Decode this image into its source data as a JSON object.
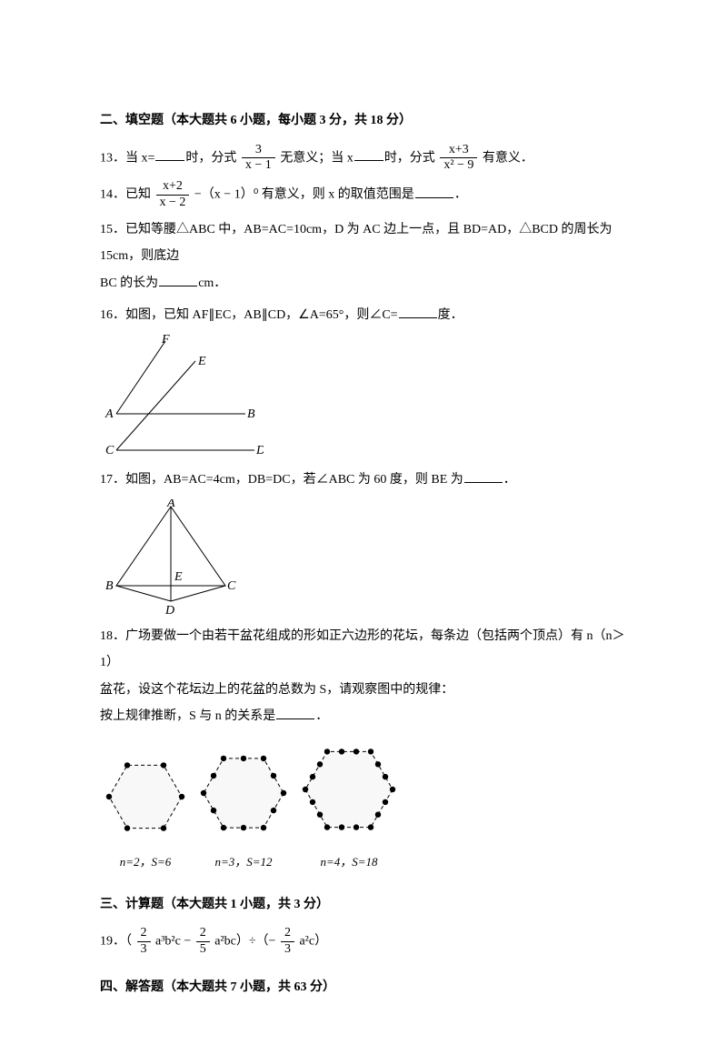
{
  "sections": {
    "fill_title": "二、填空题（本大题共 6 小题，每小题 3 分，共 18 分）",
    "calc_title": "三、计算题（本大题共 1 小题，共 3 分）",
    "solve_title": "四、解答题（本大题共 7 小题，共 63 分）"
  },
  "q13": {
    "p1": "13．当 x=",
    "p2": "时，分式",
    "frac1_num": "3",
    "frac1_den": "x − 1",
    "p3": "无意义；当 x",
    "p4": "时，分式",
    "frac2_num": "x+3",
    "frac2_den": "x² − 9",
    "p5": "有意义．"
  },
  "q14": {
    "p1": "14．已知",
    "frac_num": "x+2",
    "frac_den": "x − 2",
    "p2": "−（x − 1）⁰ 有意义，则 x 的取值范围是",
    "p3": "．"
  },
  "q15": {
    "p1": "15．已知等腰△ABC 中，AB=AC=10cm，D 为 AC 边上一点，且 BD=AD，△BCD 的周长为 15cm，则底边",
    "p2": "BC 的长为",
    "p3": "cm．"
  },
  "q16": {
    "text": "16．如图，已知 AF∥EC，AB∥CD，∠A=65°，则∠C=",
    "suffix": "度．",
    "labels": {
      "A": "A",
      "B": "B",
      "C": "C",
      "D": "D",
      "E": "E",
      "F": "F"
    }
  },
  "q17": {
    "text": "17．如图，AB=AC=4cm，DB=DC，若∠ABC 为 60 度，则 BE 为",
    "suffix": "．",
    "labels": {
      "A": "A",
      "B": "B",
      "C": "C",
      "D": "D",
      "E": "E"
    }
  },
  "q18": {
    "p1": "18．广场要做一个由若干盆花组成的形如正六边形的花坛，每条边（包括两个顶点）有 n（n＞1）",
    "p2": "盆花，设这个花坛边上的花盆的总数为 S，请观察图中的规律：",
    "p3": "按上规律推断，S 与 n 的关系是",
    "p4": "．",
    "captions": [
      "n=2，S=6",
      "n=3，S=12",
      "n=4，S=18"
    ]
  },
  "q19": {
    "p1": "19．（",
    "f1n": "2",
    "f1d": "3",
    "p2": "a³b²c −",
    "f2n": "2",
    "f2d": "5",
    "p3": "a²bc）÷（−",
    "f3n": "2",
    "f3d": "3",
    "p4": "a²c）"
  },
  "hex": {
    "dot_r": 3.2,
    "stroke": "#000000",
    "dash": "4 3",
    "items": [
      {
        "n": 2,
        "size": 40
      },
      {
        "n": 3,
        "size": 44
      },
      {
        "n": 4,
        "size": 48
      }
    ]
  },
  "colors": {
    "text": "#000000",
    "line": "#000000",
    "bg": "#ffffff",
    "hexfill": "#f8f8f8"
  }
}
